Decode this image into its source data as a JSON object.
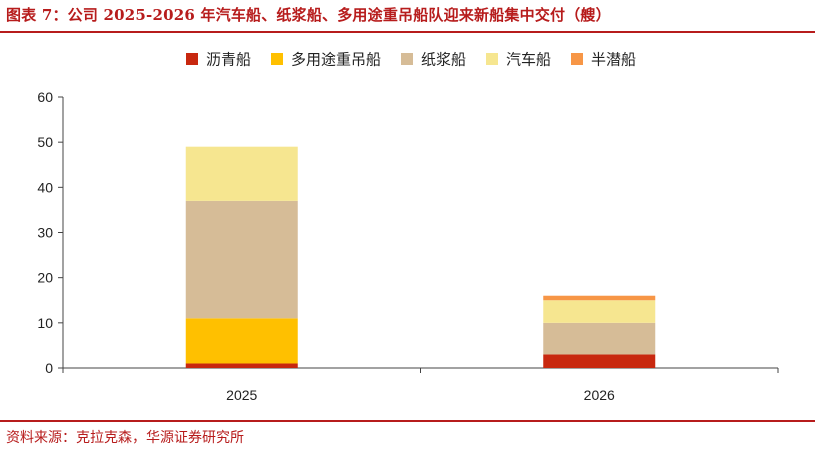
{
  "title": "图表 7：公司 2025-2026 年汽车船、纸浆船、多用途重吊船队迎来新船集中交付（艘）",
  "source": "资料来源：克拉克森，华源证券研究所",
  "chart_data": {
    "type": "bar",
    "stacked": true,
    "categories": [
      "2025",
      "2026"
    ],
    "ylim": [
      0,
      60
    ],
    "yticks": [
      0,
      10,
      20,
      30,
      40,
      50,
      60
    ],
    "legend_position": "top-center",
    "grid": false,
    "series": [
      {
        "name": "沥青船",
        "color": "#c8280f",
        "values": [
          1,
          3
        ]
      },
      {
        "name": "多用途重吊船",
        "color": "#ffc000",
        "values": [
          10,
          0
        ]
      },
      {
        "name": "纸浆船",
        "color": "#d6bc97",
        "values": [
          26,
          7
        ]
      },
      {
        "name": "汽车船",
        "color": "#f6e690",
        "values": [
          12,
          5
        ]
      },
      {
        "name": "半潜船",
        "color": "#f79646",
        "values": [
          0,
          1
        ]
      }
    ]
  }
}
